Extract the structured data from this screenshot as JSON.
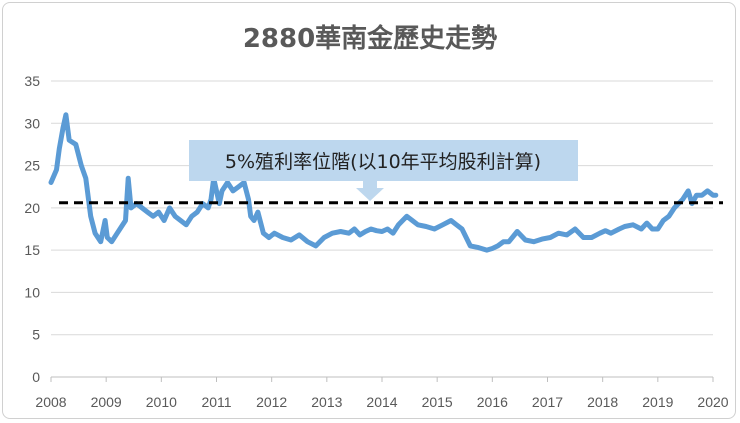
{
  "chart_data": {
    "type": "line",
    "title": "2880華南金歷史走勢",
    "xlabel": "",
    "ylabel": "",
    "x_ticks": [
      "2008",
      "2009",
      "2010",
      "2011",
      "2012",
      "2013",
      "2014",
      "2015",
      "2016",
      "2017",
      "2018",
      "2019",
      "2020"
    ],
    "y_ticks": [
      "0",
      "5",
      "10",
      "15",
      "20",
      "25",
      "30",
      "35"
    ],
    "xlim": [
      2008,
      2020
    ],
    "ylim": [
      0,
      35
    ],
    "grid": "horizontal",
    "legend": "none",
    "colors": {
      "series": "#5b9bd5",
      "reference": "#000000",
      "callout_fill": "#bdd7ee"
    },
    "reference_line": {
      "value": 20.6,
      "style": "dashed"
    },
    "annotation": {
      "text": "5%殖利率位階(以10年平均股利計算)",
      "x": 2013.8,
      "y": 20.6
    },
    "series": [
      {
        "x": [
          2008.0,
          2008.1,
          2008.15,
          2008.22,
          2008.27,
          2008.33,
          2008.45,
          2008.55,
          2008.63,
          2008.72,
          2008.8,
          2008.9,
          2008.98,
          2009.02,
          2009.1,
          2009.2,
          2009.3,
          2009.35,
          2009.4,
          2009.45,
          2009.55,
          2009.65,
          2009.75,
          2009.85,
          2009.95,
          2010.05,
          2010.15,
          2010.25,
          2010.35,
          2010.45,
          2010.55,
          2010.65,
          2010.75,
          2010.85,
          2010.9,
          2010.95,
          2011.05,
          2011.1,
          2011.2,
          2011.3,
          2011.4,
          2011.5,
          2011.58,
          2011.62,
          2011.68,
          2011.75,
          2011.85,
          2011.95,
          2012.05,
          2012.2,
          2012.35,
          2012.5,
          2012.65,
          2012.8,
          2012.95,
          2013.1,
          2013.25,
          2013.4,
          2013.5,
          2013.6,
          2013.7,
          2013.8,
          2013.9,
          2014.0,
          2014.1,
          2014.2,
          2014.3,
          2014.45,
          2014.55,
          2014.65,
          2014.8,
          2014.95,
          2015.1,
          2015.25,
          2015.35,
          2015.45,
          2015.6,
          2015.75,
          2015.9,
          2016.0,
          2016.1,
          2016.2,
          2016.3,
          2016.45,
          2016.6,
          2016.75,
          2016.9,
          2017.05,
          2017.2,
          2017.35,
          2017.5,
          2017.65,
          2017.8,
          2017.95,
          2018.05,
          2018.15,
          2018.3,
          2018.4,
          2018.55,
          2018.7,
          2018.8,
          2018.9,
          2019.0,
          2019.1,
          2019.2,
          2019.3,
          2019.45,
          2019.55,
          2019.62,
          2019.7,
          2019.8,
          2019.9,
          2020.0,
          2020.05
        ],
        "y": [
          23,
          24.5,
          27,
          29.5,
          31,
          28,
          27.5,
          25,
          23.5,
          19,
          17,
          16,
          18.5,
          16.5,
          16,
          17,
          18,
          18.5,
          23.5,
          20,
          20.5,
          20,
          19.5,
          19,
          19.5,
          18.5,
          20,
          19,
          18.5,
          18,
          19,
          19.5,
          20.5,
          20,
          21,
          23.5,
          20.5,
          22,
          23,
          22,
          22.5,
          23,
          21,
          19,
          18.5,
          19.5,
          17,
          16.5,
          17,
          16.5,
          16.2,
          16.8,
          16,
          15.5,
          16.5,
          17,
          17.2,
          17,
          17.5,
          16.8,
          17.2,
          17.5,
          17.3,
          17.2,
          17.5,
          17,
          18,
          19,
          18.5,
          18,
          17.8,
          17.5,
          18,
          18.5,
          18,
          17.5,
          15.5,
          15.3,
          15,
          15.2,
          15.5,
          16,
          16,
          17.2,
          16.2,
          16,
          16.3,
          16.5,
          17,
          16.8,
          17.5,
          16.5,
          16.5,
          17,
          17.3,
          17,
          17.5,
          17.8,
          18,
          17.5,
          18.2,
          17.5,
          17.5,
          18.5,
          19,
          20,
          21,
          22,
          20.5,
          21.5,
          21.5,
          22,
          21.5,
          21.5
        ]
      }
    ]
  }
}
